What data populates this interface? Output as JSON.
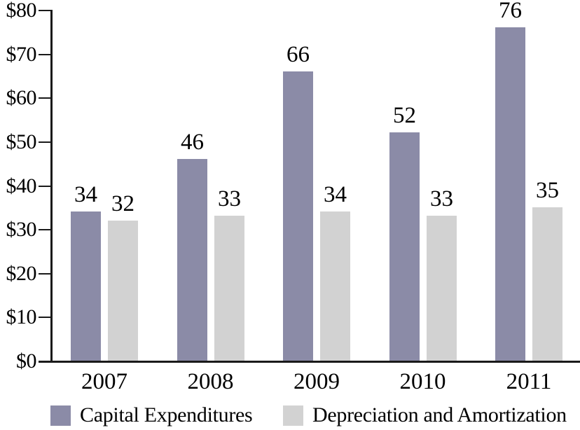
{
  "chart_data": {
    "type": "bar",
    "categories": [
      "2007",
      "2008",
      "2009",
      "2010",
      "2011"
    ],
    "series": [
      {
        "name": "Capital Expenditures",
        "color": "#8B8BA7",
        "values": [
          34,
          46,
          66,
          52,
          76
        ]
      },
      {
        "name": "Depreciation and Amortization",
        "color": "#D2D2D2",
        "values": [
          32,
          33,
          34,
          33,
          35
        ]
      }
    ],
    "title": "",
    "xlabel": "",
    "ylabel": "",
    "ylim": [
      0,
      80
    ],
    "y_tick_interval": 10,
    "y_tick_labels": [
      "$0",
      "$10",
      "$20",
      "$30",
      "$40",
      "$50",
      "$60",
      "$70",
      "$80"
    ],
    "value_labels_shown": true,
    "grid": false,
    "legend_position": "bottom"
  },
  "colors": {
    "axis": "#1a1a1a",
    "text": "#000000",
    "background": "#ffffff",
    "capital_expenditures": "#8B8BA7",
    "depreciation_amortization": "#D2D2D2"
  }
}
